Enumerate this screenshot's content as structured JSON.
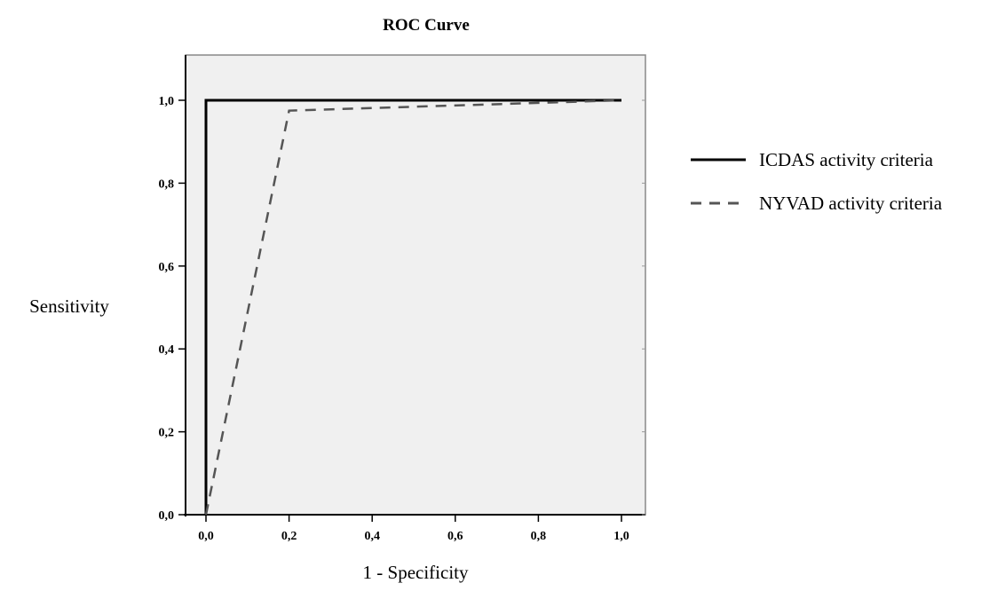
{
  "chart_data": {
    "type": "line",
    "title": "ROC Curve",
    "xlabel": "1 - Specificity",
    "ylabel": "Sensitivity",
    "xlim": [
      0,
      1
    ],
    "ylim": [
      0,
      1
    ],
    "x_ticks": [
      0,
      0.2,
      0.4,
      0.6,
      0.8,
      1.0
    ],
    "y_ticks": [
      0,
      0.2,
      0.4,
      0.6,
      0.8,
      1.0
    ],
    "x_tick_labels": [
      "0,0",
      "0,2",
      "0,4",
      "0,6",
      "0,8",
      "1,0"
    ],
    "y_tick_labels": [
      "0,0",
      "0,2",
      "0,4",
      "0,6",
      "0,8",
      "1,0"
    ],
    "grid": false,
    "legend_position": "right",
    "plot_background": "#f0f0f0",
    "series": [
      {
        "name": "ICDAS activity criteria",
        "style": "solid",
        "color": "#000000",
        "x": [
          0.0,
          0.0,
          1.0
        ],
        "y": [
          0.0,
          1.0,
          1.0
        ]
      },
      {
        "name": "NYVAD activity criteria",
        "style": "dashed",
        "color": "#555555",
        "x": [
          0.0,
          0.2,
          1.0
        ],
        "y": [
          0.0,
          0.975,
          1.0
        ]
      }
    ]
  }
}
